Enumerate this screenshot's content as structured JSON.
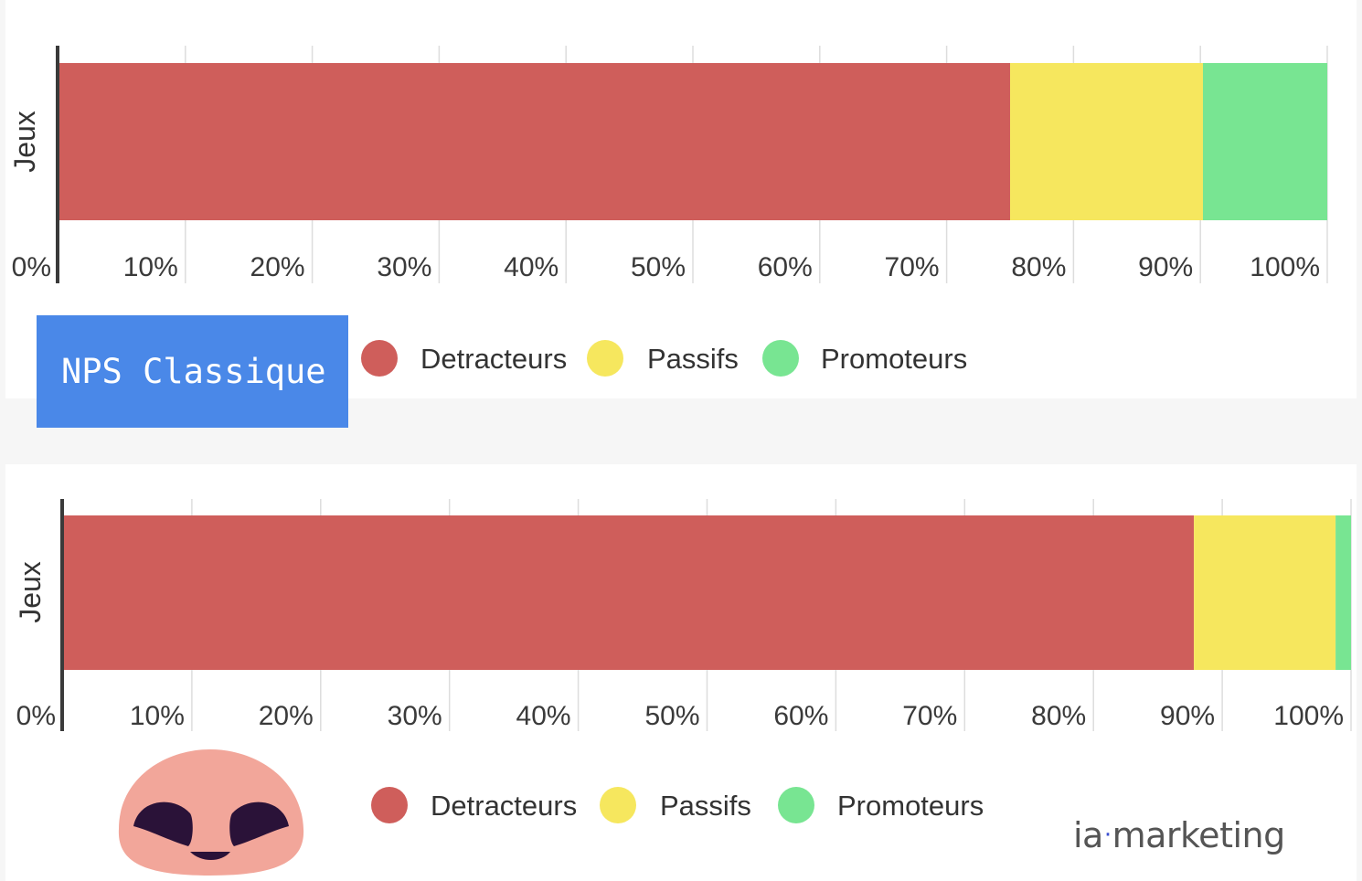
{
  "colors": {
    "detracteurs": "#cf5e5b",
    "passifs": "#f6e75e",
    "promoteurs": "#78e592",
    "grid": "#dddddd",
    "axis": "#3a3a3a",
    "badge": "#4a88e8",
    "mascot": "#f2a69a",
    "mascot_eyes": "#2a1238"
  },
  "chart_data": [
    {
      "type": "bar",
      "orientation": "horizontal",
      "stacked": true,
      "categories": [
        "Jeux"
      ],
      "series": [
        {
          "name": "Detracteurs",
          "values": [
            75
          ],
          "color": "#cf5e5b"
        },
        {
          "name": "Passifs",
          "values": [
            15.2
          ],
          "color": "#f6e75e"
        },
        {
          "name": "Promoteurs",
          "values": [
            9.8
          ],
          "color": "#78e592"
        }
      ],
      "x_ticks": [
        "0%",
        "10%",
        "20%",
        "30%",
        "40%",
        "50%",
        "60%",
        "70%",
        "80%",
        "90%",
        "100%"
      ],
      "xlim": [
        0,
        100
      ],
      "grid": true,
      "legend": "bottom",
      "legend_labels": [
        "Detracteurs",
        "Passifs",
        "Promoteurs"
      ]
    },
    {
      "type": "bar",
      "orientation": "horizontal",
      "stacked": true,
      "categories": [
        "Jeux"
      ],
      "series": [
        {
          "name": "Detracteurs",
          "values": [
            87.8
          ],
          "color": "#cf5e5b"
        },
        {
          "name": "Passifs",
          "values": [
            11
          ],
          "color": "#f6e75e"
        },
        {
          "name": "Promoteurs",
          "values": [
            1.2
          ],
          "color": "#78e592"
        }
      ],
      "x_ticks": [
        "0%",
        "10%",
        "20%",
        "30%",
        "40%",
        "50%",
        "60%",
        "70%",
        "80%",
        "90%",
        "100%"
      ],
      "xlim": [
        0,
        100
      ],
      "grid": true,
      "legend": "bottom",
      "legend_labels": [
        "Detracteurs",
        "Passifs",
        "Promoteurs"
      ]
    }
  ],
  "badge": {
    "label": "NPS Classique"
  },
  "mascot": {
    "icon": "smiling-face-icon"
  },
  "brand": {
    "prefix": "ia",
    "separator": "·",
    "suffix": "marketing"
  }
}
